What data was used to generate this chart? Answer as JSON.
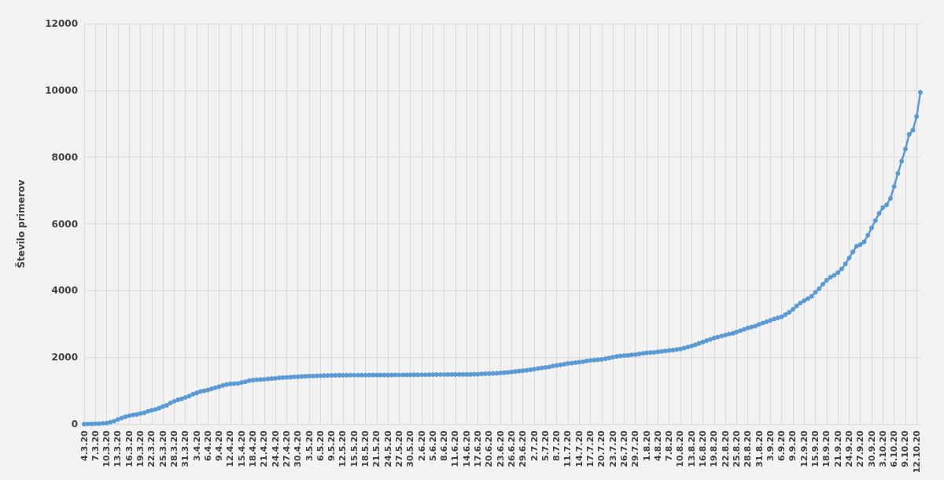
{
  "chart_data": {
    "type": "line",
    "ylabel": "Število primerov",
    "categories": [
      "4.3.20",
      null,
      null,
      "7.3.20",
      null,
      null,
      "10.3.20",
      null,
      null,
      "13.3.20",
      null,
      null,
      "16.3.20",
      null,
      null,
      "19.3.20",
      null,
      null,
      "22.3.20",
      null,
      null,
      "25.3.20",
      null,
      null,
      "28.3.20",
      null,
      null,
      "31.3.20",
      null,
      null,
      "3.4.20",
      null,
      null,
      "6.4.20",
      null,
      null,
      "9.4.20",
      null,
      null,
      "12.4.20",
      null,
      null,
      "15.4.20",
      null,
      null,
      "18.4.20",
      null,
      null,
      "21.4.20",
      null,
      null,
      "24.4.20",
      null,
      null,
      "27.4.20",
      null,
      null,
      "30.4.20",
      null,
      null,
      "3.5.20",
      null,
      null,
      "6.5.20",
      null,
      null,
      "9.5.20",
      null,
      null,
      "12.5.20",
      null,
      null,
      "15.5.20",
      null,
      null,
      "18.5.20",
      null,
      null,
      "21.5.20",
      null,
      null,
      "24.5.20",
      null,
      null,
      "27.5.20",
      null,
      null,
      "30.5.20",
      null,
      null,
      "2.6.20",
      null,
      null,
      "5.6.20",
      null,
      null,
      "8.6.20",
      null,
      null,
      "11.6.20",
      null,
      null,
      "14.6.20",
      null,
      null,
      "17.6.20",
      null,
      null,
      "20.6.20",
      null,
      null,
      "23.6.20",
      null,
      null,
      "26.6.20",
      null,
      null,
      "29.6.20",
      null,
      null,
      "2.7.20",
      null,
      null,
      "5.7.20",
      null,
      null,
      "8.7.20",
      null,
      null,
      "11.7.20",
      null,
      null,
      "14.7.20",
      null,
      null,
      "17.7.20",
      null,
      null,
      "20.7.20",
      null,
      null,
      "23.7.20",
      null,
      null,
      "26.7.20",
      null,
      null,
      "29.7.20",
      null,
      null,
      "1.8.20",
      null,
      null,
      "4.8.20",
      null,
      null,
      "7.8.20",
      null,
      null,
      "10.8.20",
      null,
      null,
      "13.8.20",
      null,
      null,
      "16.8.20",
      null,
      null,
      "19.8.20",
      null,
      null,
      "22.8.20",
      null,
      null,
      "25.8.20",
      null,
      null,
      "28.8.20",
      null,
      null,
      "31.8.20",
      null,
      null,
      "3.9.20",
      null,
      null,
      "6.9.20",
      null,
      null,
      "9.9.20",
      null,
      null,
      "12.9.20",
      null,
      null,
      "15.9.20",
      null,
      null,
      "18.9.20",
      null,
      null,
      "21.9.20",
      null,
      null,
      "24.9.20",
      null,
      null,
      "27.9.20",
      null,
      null,
      "30.9.20",
      null,
      null,
      "3.10.20",
      null,
      null,
      "6.10.20",
      null,
      null,
      "9.10.20",
      null,
      null,
      "12.10.20",
      null
    ],
    "series": [
      {
        "color": "#5b9bd5",
        "values": [
          1,
          6,
          8,
          12,
          16,
          23,
          31,
          57,
          89,
          141,
          181,
          219,
          253,
          275,
          286,
          319,
          341,
          383,
          414,
          442,
          480,
          528,
          562,
          632,
          684,
          730,
          756,
          802,
          841,
          897,
          934,
          977,
          997,
          1021,
          1059,
          1091,
          1124,
          1160,
          1188,
          1205,
          1212,
          1220,
          1248,
          1268,
          1304,
          1317,
          1330,
          1335,
          1344,
          1353,
          1366,
          1373,
          1388,
          1396,
          1402,
          1408,
          1416,
          1418,
          1429,
          1434,
          1439,
          1439,
          1448,
          1450,
          1454,
          1460,
          1461,
          1463,
          1464,
          1465,
          1466,
          1467,
          1468,
          1468,
          1468,
          1468,
          1469,
          1469,
          1469,
          1469,
          1469,
          1471,
          1471,
          1473,
          1473,
          1473,
          1475,
          1475,
          1477,
          1477,
          1479,
          1480,
          1480,
          1484,
          1484,
          1485,
          1485,
          1486,
          1486,
          1488,
          1488,
          1488,
          1488,
          1489,
          1494,
          1496,
          1505,
          1510,
          1513,
          1519,
          1524,
          1534,
          1541,
          1551,
          1564,
          1576,
          1588,
          1600,
          1613,
          1630,
          1646,
          1668,
          1684,
          1698,
          1713,
          1743,
          1760,
          1777,
          1793,
          1816,
          1826,
          1841,
          1857,
          1869,
          1893,
          1910,
          1920,
          1930,
          1938,
          1960,
          1982,
          2005,
          2024,
          2040,
          2052,
          2058,
          2076,
          2085,
          2103,
          2122,
          2135,
          2143,
          2148,
          2168,
          2180,
          2192,
          2208,
          2220,
          2235,
          2250,
          2280,
          2310,
          2340,
          2380,
          2420,
          2460,
          2500,
          2540,
          2580,
          2610,
          2640,
          2670,
          2700,
          2720,
          2760,
          2800,
          2840,
          2880,
          2910,
          2940,
          2990,
          3030,
          3068,
          3110,
          3150,
          3185,
          3215,
          3280,
          3350,
          3440,
          3540,
          3630,
          3700,
          3760,
          3830,
          3950,
          4060,
          4190,
          4310,
          4400,
          4460,
          4540,
          4650,
          4800,
          4980,
          5160,
          5330,
          5380,
          5460,
          5660,
          5880,
          6100,
          6310,
          6490,
          6570,
          6760,
          7120,
          7510,
          7880,
          8240,
          8680,
          8810,
          9220,
          9940
        ]
      }
    ],
    "ylim": [
      0,
      12000
    ],
    "yticks": [
      0,
      2000,
      4000,
      6000,
      8000,
      10000,
      12000
    ],
    "grid": true,
    "marker": "circle",
    "line_style": "solid"
  }
}
